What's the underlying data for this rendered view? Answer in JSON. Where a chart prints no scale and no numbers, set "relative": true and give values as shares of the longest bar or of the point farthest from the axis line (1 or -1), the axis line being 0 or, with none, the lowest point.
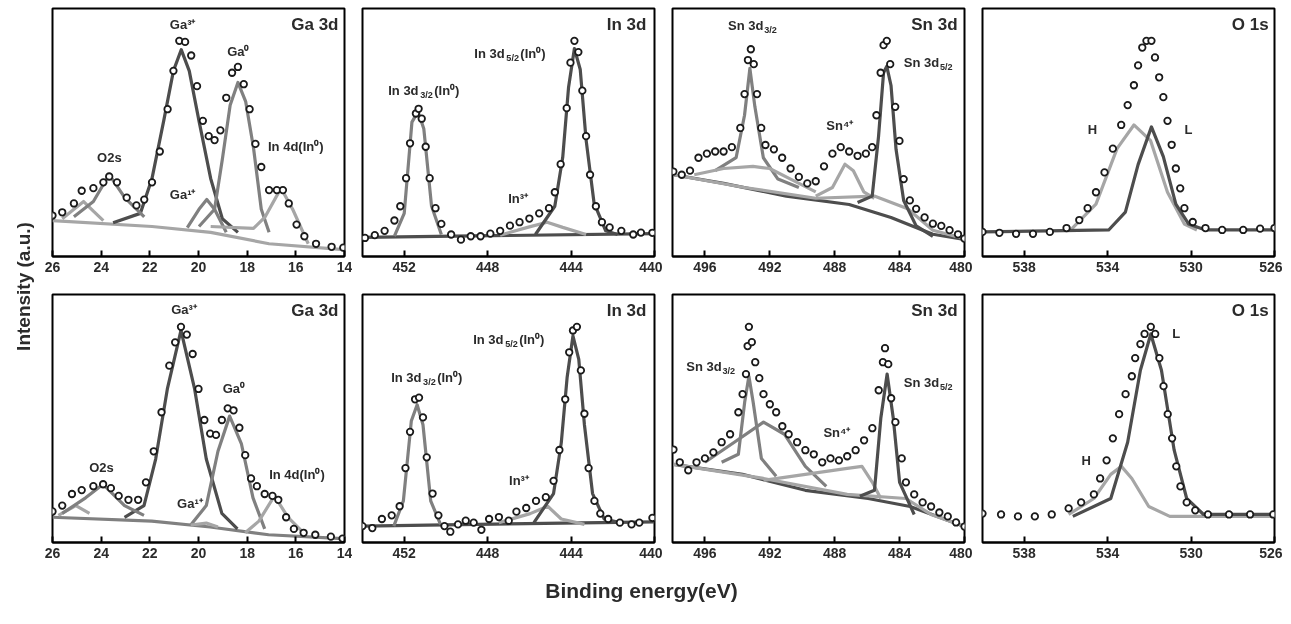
{
  "chart_data": [
    {
      "type": "scatter",
      "title": "Ga 3d",
      "ylabel": "Intensity (a.u.)",
      "relative": true,
      "grid": false,
      "xlim": [
        26,
        14
      ],
      "xticks": [
        26,
        24,
        22,
        20,
        18,
        16,
        14
      ],
      "annotations": [
        "Ga³⁺",
        "Ga⁰",
        "O2s",
        "Ga¹⁺",
        "In 4d(In⁰)"
      ],
      "series": [
        {
          "type": "line",
          "color": "#a6a6a6",
          "x": [
            26,
            21.91,
            19.5,
            17.1,
            14.05
          ],
          "values": [
            0.166,
            0.139,
            0.112,
            0.059,
            0.032
          ]
        },
        {
          "type": "line",
          "color": "#4d4d4d",
          "x": [
            23.51,
            22.39,
            21.91,
            21.43,
            21.03,
            20.71,
            20.38,
            19.98,
            19.5,
            19.02,
            18.38
          ],
          "values": [
            0.157,
            0.2,
            0.362,
            0.629,
            0.861,
            0.959,
            0.861,
            0.629,
            0.362,
            0.175,
            0.112
          ]
        },
        {
          "type": "line",
          "color": "#808080",
          "x": [
            19.98,
            19.34,
            19.02,
            18.7,
            18.38,
            18.06,
            17.74,
            17.42,
            17.1
          ],
          "values": [
            0.139,
            0.219,
            0.451,
            0.701,
            0.807,
            0.718,
            0.504,
            0.219,
            0.112
          ]
        },
        {
          "type": "line",
          "color": "#808080",
          "x": [
            20.46,
            19.98,
            19.66,
            19.34,
            18.86
          ],
          "values": [
            0.134,
            0.219,
            0.264,
            0.219,
            0.112
          ]
        },
        {
          "type": "line",
          "color": "#a6a6a6",
          "x": [
            19.5,
            17.74,
            17.26,
            16.61,
            16.13,
            15.49
          ],
          "values": [
            0.139,
            0.13,
            0.184,
            0.317,
            0.219,
            0.059
          ]
        },
        {
          "type": "line",
          "color": "#a6a6a6",
          "x": [
            25.6,
            25.12,
            24.72,
            24.32,
            23.91
          ],
          "values": [
            0.175,
            0.219,
            0.255,
            0.21,
            0.166
          ]
        },
        {
          "type": "line",
          "color": "#808080",
          "x": [
            25.12,
            24.32,
            23.67,
            23.03,
            22.23
          ],
          "values": [
            0.184,
            0.255,
            0.38,
            0.273,
            0.184
          ]
        },
        {
          "color": "#1a1a1a",
          "marker": "circle",
          "x": [
            26.0,
            25.6,
            25.12,
            24.8,
            24.32,
            23.91,
            23.67,
            23.35,
            22.95,
            22.55,
            22.23,
            21.91,
            21.59,
            21.27,
            21.03,
            20.79,
            20.55,
            20.3,
            20.06,
            19.82,
            19.58,
            19.34,
            19.1,
            18.86,
            18.62,
            18.38,
            18.14,
            17.9,
            17.66,
            17.42,
            17.1,
            16.78,
            16.53,
            16.29,
            15.97,
            15.65,
            15.17,
            14.53,
            14.05
          ],
          "values": [
            0.19,
            0.205,
            0.246,
            0.305,
            0.317,
            0.344,
            0.371,
            0.344,
            0.273,
            0.237,
            0.264,
            0.344,
            0.487,
            0.683,
            0.861,
            1.0,
            0.995,
            0.932,
            0.79,
            0.629,
            0.558,
            0.54,
            0.585,
            0.736,
            0.852,
            0.879,
            0.799,
            0.683,
            0.522,
            0.415,
            0.308,
            0.308,
            0.308,
            0.246,
            0.148,
            0.094,
            0.059,
            0.045,
            0.041
          ]
        }
      ]
    },
    {
      "type": "scatter",
      "title": "In 3d",
      "relative": true,
      "grid": false,
      "xlim": [
        454,
        440
      ],
      "xticks": [
        452,
        448,
        444,
        440
      ],
      "annotations": [
        "In 3d$_{3/2}$(In⁰)",
        "In 3d$_{5/2}$(In⁰)",
        "In³⁺"
      ],
      "series": [
        {
          "type": "line",
          "color": "#4d4d4d",
          "x": [
            454,
            440
          ],
          "values": [
            0.089,
            0.106
          ]
        },
        {
          "type": "line",
          "color": "#808080",
          "x": [
            452.47,
            452,
            451.63,
            451.34,
            451.06,
            450.69,
            450.22
          ],
          "values": [
            0.094,
            0.2,
            0.623,
            0.672,
            0.592,
            0.234,
            0.102
          ]
        },
        {
          "type": "line",
          "color": "#a6a6a6",
          "x": [
            447.4,
            446.09,
            445.15,
            444.4,
            443.28
          ],
          "values": [
            0.099,
            0.135,
            0.159,
            0.135,
            0.102
          ]
        },
        {
          "type": "line",
          "color": "#4d4d4d",
          "x": [
            445.71,
            444.78,
            444.4,
            444.12,
            443.84,
            443.56,
            443.28,
            442.9,
            442.34,
            441.77
          ],
          "values": [
            0.102,
            0.233,
            0.46,
            0.785,
            0.964,
            0.867,
            0.541,
            0.249,
            0.119,
            0.102
          ]
        },
        {
          "color": "#1a1a1a",
          "marker": "circle",
          "x": [
            453.88,
            453.41,
            452.94,
            452.47,
            452.19,
            451.91,
            451.72,
            451.44,
            451.31,
            451.16,
            450.97,
            450.78,
            450.5,
            450.22,
            449.75,
            449.28,
            448.81,
            448.34,
            447.87,
            447.4,
            446.93,
            446.47,
            446.0,
            445.53,
            445.06,
            444.78,
            444.5,
            444.21,
            444.03,
            443.84,
            443.65,
            443.46,
            443.28,
            443.09,
            442.81,
            442.52,
            442.15,
            441.59,
            441.02,
            440.65,
            440.1
          ],
          "values": [
            0.086,
            0.099,
            0.119,
            0.167,
            0.233,
            0.363,
            0.525,
            0.663,
            0.685,
            0.639,
            0.509,
            0.363,
            0.224,
            0.151,
            0.102,
            0.078,
            0.094,
            0.094,
            0.106,
            0.119,
            0.143,
            0.159,
            0.176,
            0.2,
            0.224,
            0.298,
            0.428,
            0.688,
            0.899,
            1.0,
            0.948,
            0.769,
            0.558,
            0.379,
            0.233,
            0.159,
            0.135,
            0.119,
            0.102,
            0.111,
            0.11
          ]
        }
      ]
    },
    {
      "type": "scatter",
      "title": "Sn 3d",
      "relative": true,
      "grid": false,
      "xlim": [
        498,
        480
      ],
      "xticks": [
        496,
        492,
        488,
        484,
        480
      ],
      "annotations": [
        "Sn 3d$_{3/2}$",
        "Sn 3d$_{5/2}$",
        "Sn⁴⁺"
      ],
      "series": [
        {
          "type": "line",
          "color": "#4d4d4d",
          "x": [
            497.95,
            494.85,
            490.98,
            487.11,
            484.53,
            481.95,
            480.01
          ],
          "values": [
            0.379,
            0.339,
            0.28,
            0.241,
            0.181,
            0.103,
            0.079
          ]
        },
        {
          "type": "line",
          "color": "#a6a6a6",
          "x": [
            497.95,
            493.56,
            489.17,
            485.56,
            483.5,
            481.95,
            480.01
          ],
          "values": [
            0.379,
            0.32,
            0.27,
            0.28,
            0.221,
            0.122,
            0.083
          ]
        },
        {
          "type": "line",
          "color": "#808080",
          "x": [
            495.37,
            494.08,
            493.56,
            493.23,
            492.92,
            492.4,
            491.5,
            490.21
          ],
          "values": [
            0.398,
            0.458,
            0.655,
            0.872,
            0.694,
            0.458,
            0.359,
            0.32
          ]
        },
        {
          "type": "line",
          "color": "#a6a6a6",
          "x": [
            496.66,
            494.85,
            493.04,
            492.01,
            490.72,
            489.17
          ],
          "values": [
            0.379,
            0.408,
            0.418,
            0.408,
            0.359,
            0.3
          ]
        },
        {
          "type": "line",
          "color": "#a6a6a6",
          "x": [
            489.17,
            488.14,
            487.37,
            486.85,
            486.21,
            485.56
          ],
          "values": [
            0.28,
            0.32,
            0.428,
            0.398,
            0.3,
            0.27
          ]
        },
        {
          "type": "line",
          "color": "#4d4d4d",
          "x": [
            486.59,
            485.69,
            485.3,
            484.99,
            484.79,
            484.53,
            484.22,
            483.75,
            482.98,
            481.95
          ],
          "values": [
            0.25,
            0.28,
            0.556,
            0.852,
            0.882,
            0.793,
            0.497,
            0.26,
            0.142,
            0.093
          ]
        },
        {
          "color": "#1a1a1a",
          "marker": "circle",
          "x": [
            497.95,
            497.43,
            496.92,
            496.4,
            495.88,
            495.37,
            494.85,
            494.34,
            493.82,
            493.56,
            493.35,
            493.17,
            492.99,
            492.79,
            492.53,
            492.27,
            491.75,
            491.24,
            490.72,
            490.21,
            489.69,
            489.17,
            488.66,
            488.14,
            487.63,
            487.11,
            486.59,
            486.08,
            485.69,
            485.43,
            485.17,
            484.99,
            484.79,
            484.58,
            484.27,
            484.01,
            483.75,
            483.37,
            482.98,
            482.46,
            481.95,
            481.43,
            480.92,
            480.4,
            480.01
          ],
          "values": [
            0.394,
            0.379,
            0.398,
            0.458,
            0.477,
            0.487,
            0.487,
            0.507,
            0.596,
            0.753,
            0.911,
            0.961,
            0.892,
            0.753,
            0.596,
            0.517,
            0.497,
            0.458,
            0.408,
            0.369,
            0.339,
            0.349,
            0.418,
            0.477,
            0.507,
            0.487,
            0.467,
            0.477,
            0.507,
            0.655,
            0.852,
            0.98,
            1.0,
            0.892,
            0.694,
            0.536,
            0.359,
            0.26,
            0.221,
            0.181,
            0.152,
            0.142,
            0.122,
            0.103,
            0.083
          ]
        }
      ]
    },
    {
      "type": "scatter",
      "title": "O 1s",
      "relative": true,
      "grid": false,
      "xlim": [
        540,
        526
      ],
      "xticks": [
        538,
        534,
        530,
        526
      ],
      "annotations": [
        "H",
        "L"
      ],
      "series": [
        {
          "type": "line",
          "color": "#a6a6a6",
          "x": [
            535.77,
            534.56,
            533.55,
            532.74,
            531.94,
            531.13,
            530.32,
            529.72
          ],
          "values": [
            0.123,
            0.243,
            0.5,
            0.61,
            0.537,
            0.298,
            0.151,
            0.123
          ]
        },
        {
          "type": "line",
          "color": "#4d4d4d",
          "x": [
            540,
            533.95,
            533.15,
            532.54,
            531.9,
            531.33,
            530.73,
            530.12,
            529.31,
            526
          ],
          "values": [
            0.114,
            0.123,
            0.206,
            0.426,
            0.601,
            0.463,
            0.243,
            0.151,
            0.123,
            0.123
          ]
        },
        {
          "color": "#1a1a1a",
          "marker": "circle",
          "x": [
            540,
            539.19,
            538.39,
            537.58,
            536.77,
            535.97,
            535.36,
            534.96,
            534.56,
            534.15,
            533.75,
            533.35,
            533.04,
            532.74,
            532.54,
            532.34,
            532.14,
            531.9,
            531.73,
            531.53,
            531.33,
            531.13,
            530.93,
            530.73,
            530.52,
            530.32,
            529.92,
            529.31,
            528.51,
            527.5,
            526.69,
            526
          ],
          "values": [
            0.114,
            0.11,
            0.105,
            0.105,
            0.114,
            0.132,
            0.169,
            0.224,
            0.298,
            0.39,
            0.5,
            0.61,
            0.702,
            0.794,
            0.886,
            0.969,
            1.0,
            1.0,
            0.923,
            0.831,
            0.739,
            0.629,
            0.518,
            0.408,
            0.316,
            0.224,
            0.16,
            0.132,
            0.123,
            0.123,
            0.129,
            0.132
          ]
        }
      ]
    },
    {
      "type": "scatter",
      "title": "Ga 3d",
      "relative": true,
      "grid": false,
      "xlim": [
        26,
        14
      ],
      "xticks": [
        26,
        24,
        22,
        20,
        18,
        16,
        14
      ],
      "annotations": [
        "Ga³⁺",
        "Ga⁰",
        "O2s",
        "Ga¹⁺",
        "In 4d(In⁰)"
      ],
      "series": [
        {
          "type": "line",
          "color": "#808080",
          "x": [
            26,
            21.92,
            19.52,
            17.12,
            14.08
          ],
          "values": [
            0.117,
            0.099,
            0.072,
            0.036,
            0.018
          ]
        },
        {
          "type": "line",
          "color": "#4d4d4d",
          "x": [
            23.04,
            22.24,
            21.76,
            21.28,
            20.72,
            20.16,
            19.68,
            19.04,
            18.4
          ],
          "values": [
            0.117,
            0.171,
            0.387,
            0.712,
            0.984,
            0.712,
            0.387,
            0.135,
            0.063
          ]
        },
        {
          "type": "line",
          "color": "#808080",
          "x": [
            20.32,
            19.68,
            19.2,
            18.72,
            18.24,
            17.76,
            17.28
          ],
          "values": [
            0.081,
            0.171,
            0.423,
            0.586,
            0.459,
            0.207,
            0.063
          ]
        },
        {
          "type": "line",
          "color": "#a6a6a6",
          "x": [
            20.32,
            19.68,
            19.2
          ],
          "values": [
            0.081,
            0.09,
            0.072
          ]
        },
        {
          "type": "line",
          "color": "#a6a6a6",
          "x": [
            18.08,
            17.52,
            16.88,
            16.32,
            15.68
          ],
          "values": [
            0.045,
            0.099,
            0.216,
            0.117,
            0.045
          ]
        },
        {
          "type": "line",
          "color": "#a6a6a6",
          "x": [
            25.76,
            25.04,
            24.48
          ],
          "values": [
            0.126,
            0.171,
            0.135
          ]
        },
        {
          "type": "line",
          "color": "#808080",
          "x": [
            25.6,
            24.64,
            23.92,
            23.04,
            22.24
          ],
          "values": [
            0.135,
            0.207,
            0.27,
            0.171,
            0.126
          ]
        },
        {
          "color": "#1a1a1a",
          "marker": "circle",
          "x": [
            26,
            25.6,
            25.2,
            24.8,
            24.32,
            23.92,
            23.6,
            23.28,
            22.88,
            22.48,
            22.16,
            21.84,
            21.52,
            21.2,
            20.96,
            20.72,
            20.48,
            20.24,
            20,
            19.76,
            19.52,
            19.28,
            19.04,
            18.8,
            18.56,
            18.32,
            18.08,
            17.84,
            17.6,
            17.28,
            16.96,
            16.72,
            16.4,
            16.08,
            15.68,
            15.2,
            14.56,
            14.08
          ],
          "values": [
            0.144,
            0.171,
            0.225,
            0.243,
            0.261,
            0.27,
            0.252,
            0.216,
            0.198,
            0.198,
            0.279,
            0.423,
            0.604,
            0.82,
            0.928,
            1.0,
            0.964,
            0.874,
            0.712,
            0.568,
            0.505,
            0.499,
            0.568,
            0.622,
            0.613,
            0.532,
            0.405,
            0.297,
            0.261,
            0.225,
            0.216,
            0.198,
            0.117,
            0.063,
            0.045,
            0.036,
            0.027,
            0.018
          ]
        }
      ]
    },
    {
      "type": "scatter",
      "title": "In 3d",
      "xlabel": "Binding energy(eV)",
      "relative": true,
      "grid": false,
      "xlim": [
        454,
        440
      ],
      "xticks": [
        452,
        448,
        444,
        440
      ],
      "annotations": [
        "In 3d$_{3/2}$(In⁰)",
        "In 3d$_{5/2}$(In⁰)",
        "In³⁺"
      ],
      "series": [
        {
          "type": "line",
          "color": "#4d4d4d",
          "x": [
            454,
            440
          ],
          "values": [
            0.076,
            0.096
          ]
        },
        {
          "type": "line",
          "color": "#808080",
          "x": [
            452.5,
            452.04,
            451.66,
            451.38,
            451.1,
            450.73,
            450.26
          ],
          "values": [
            0.076,
            0.193,
            0.563,
            0.639,
            0.546,
            0.193,
            0.084
          ]
        },
        {
          "type": "line",
          "color": "#a6a6a6",
          "x": [
            447.46,
            445.96,
            445.12,
            444.47,
            443.36
          ],
          "values": [
            0.092,
            0.134,
            0.168,
            0.109,
            0.084
          ]
        },
        {
          "type": "line",
          "color": "#4d4d4d",
          "x": [
            445.78,
            444.84,
            444.47,
            444.19,
            443.91,
            443.63,
            443.36,
            442.97,
            442.41,
            441.66
          ],
          "values": [
            0.092,
            0.227,
            0.462,
            0.765,
            0.958,
            0.849,
            0.546,
            0.227,
            0.109,
            0.092
          ]
        },
        {
          "color": "#1a1a1a",
          "marker": "circle",
          "x": [
            454,
            453.53,
            453.07,
            452.6,
            452.22,
            451.94,
            451.72,
            451.48,
            451.29,
            451.1,
            450.92,
            450.64,
            450.36,
            450.07,
            449.79,
            449.42,
            449.05,
            448.67,
            448.3,
            447.93,
            447.46,
            446.99,
            446.62,
            446.15,
            445.68,
            445.21,
            444.84,
            444.56,
            444.28,
            444.09,
            443.91,
            443.72,
            443.53,
            443.36,
            443.16,
            442.88,
            442.6,
            442.22,
            441.66,
            441.1,
            440.73,
            440.1
          ],
          "values": [
            0.076,
            0.067,
            0.109,
            0.126,
            0.168,
            0.345,
            0.513,
            0.664,
            0.672,
            0.58,
            0.395,
            0.227,
            0.126,
            0.076,
            0.05,
            0.084,
            0.101,
            0.092,
            0.059,
            0.109,
            0.118,
            0.101,
            0.143,
            0.16,
            0.193,
            0.21,
            0.286,
            0.429,
            0.664,
            0.882,
            0.983,
            1.0,
            0.798,
            0.597,
            0.345,
            0.193,
            0.134,
            0.109,
            0.092,
            0.084,
            0.092,
            0.114
          ]
        }
      ]
    },
    {
      "type": "scatter",
      "title": "Sn 3d",
      "relative": true,
      "grid": false,
      "xlim": [
        498,
        480
      ],
      "xticks": [
        496,
        492,
        488,
        484,
        480
      ],
      "annotations": [
        "Sn 3d$_{3/2}$",
        "Sn 3d$_{5/2}$",
        "Sn⁴⁺"
      ],
      "series": [
        {
          "type": "line",
          "color": "#4d4d4d",
          "x": [
            497.94,
            493.68,
            489.81,
            485.94,
            483.35,
            480
          ],
          "values": [
            0.362,
            0.316,
            0.242,
            0.204,
            0.167,
            0.074
          ]
        },
        {
          "type": "line",
          "color": "#a6a6a6",
          "x": [
            497.94,
            492.39,
            487.23,
            483.61,
            482.06,
            480
          ],
          "values": [
            0.362,
            0.297,
            0.223,
            0.204,
            0.13,
            0.074
          ]
        },
        {
          "type": "line",
          "color": "#808080",
          "x": [
            494.97,
            493.94,
            493.55,
            493.29,
            493.03,
            492.52,
            491.61
          ],
          "values": [
            0.372,
            0.409,
            0.651,
            0.771,
            0.651,
            0.39,
            0.307
          ]
        },
        {
          "type": "line",
          "color": "#808080",
          "x": [
            496,
            494.19,
            492.39,
            491.1,
            489.81,
            488.52
          ],
          "values": [
            0.372,
            0.465,
            0.558,
            0.502,
            0.353,
            0.26
          ]
        },
        {
          "type": "line",
          "color": "#a6a6a6",
          "x": [
            492.39,
            489.81,
            487.23,
            486.32,
            485.68,
            485.16
          ],
          "values": [
            0.288,
            0.316,
            0.344,
            0.353,
            0.279,
            0.204
          ]
        },
        {
          "type": "line",
          "color": "#4d4d4d",
          "x": [
            486.45,
            485.55,
            485.16,
            484.77,
            484.39,
            484,
            483.1
          ],
          "values": [
            0.214,
            0.242,
            0.576,
            0.781,
            0.576,
            0.279,
            0.13
          ]
        },
        {
          "color": "#1a1a1a",
          "marker": "circle",
          "x": [
            497.94,
            497.55,
            497.03,
            496.52,
            496,
            495.48,
            494.97,
            494.45,
            493.94,
            493.68,
            493.47,
            493.37,
            493.29,
            493.11,
            492.9,
            492.65,
            492.39,
            492,
            491.61,
            491.23,
            490.84,
            490.32,
            489.81,
            489.29,
            488.77,
            488.26,
            487.74,
            487.23,
            486.71,
            486.19,
            485.68,
            485.29,
            485.03,
            484.9,
            484.7,
            484.52,
            484.26,
            483.87,
            483.61,
            483.1,
            482.58,
            482.06,
            481.55,
            481.03,
            480.52,
            480
          ],
          "values": [
            0.431,
            0.372,
            0.335,
            0.372,
            0.39,
            0.418,
            0.465,
            0.502,
            0.604,
            0.688,
            0.781,
            0.911,
            1.0,
            0.929,
            0.836,
            0.762,
            0.688,
            0.641,
            0.604,
            0.539,
            0.502,
            0.465,
            0.428,
            0.409,
            0.372,
            0.39,
            0.381,
            0.4,
            0.428,
            0.474,
            0.53,
            0.706,
            0.836,
            0.901,
            0.827,
            0.669,
            0.558,
            0.39,
            0.279,
            0.223,
            0.186,
            0.167,
            0.139,
            0.121,
            0.093,
            0.074
          ]
        }
      ]
    },
    {
      "type": "scatter",
      "title": "O 1s",
      "relative": true,
      "grid": false,
      "xlim": [
        540,
        526
      ],
      "xticks": [
        538,
        534,
        530,
        526
      ],
      "annotations": [
        "H",
        "L"
      ],
      "series": [
        {
          "type": "line",
          "color": "#a6a6a6",
          "x": [
            535.87,
            534.66,
            533.85,
            533.34,
            532.84,
            532.03,
            531.02,
            526.06
          ],
          "values": [
            0.13,
            0.204,
            0.316,
            0.353,
            0.297,
            0.167,
            0.121,
            0.121
          ]
        },
        {
          "type": "line",
          "color": "#4d4d4d",
          "x": [
            535.67,
            533.85,
            533.04,
            532.43,
            531.93,
            531.42,
            530.81,
            530.21,
            529.4,
            526.06
          ],
          "values": [
            0.121,
            0.204,
            0.465,
            0.799,
            0.967,
            0.799,
            0.428,
            0.204,
            0.13,
            0.13
          ]
        },
        {
          "color": "#1a1a1a",
          "marker": "circle",
          "x": [
            540,
            539.11,
            538.3,
            537.49,
            536.68,
            535.87,
            535.27,
            534.66,
            534.36,
            534.05,
            533.75,
            533.45,
            533.14,
            532.84,
            532.68,
            532.43,
            532.23,
            531.93,
            531.72,
            531.52,
            531.32,
            531.12,
            530.91,
            530.71,
            530.51,
            530.21,
            529.8,
            529.19,
            528.18,
            527.17,
            526.06
          ],
          "values": [
            0.134,
            0.13,
            0.121,
            0.121,
            0.13,
            0.158,
            0.186,
            0.223,
            0.297,
            0.381,
            0.483,
            0.595,
            0.688,
            0.771,
            0.855,
            0.92,
            0.967,
            1.0,
            0.967,
            0.855,
            0.725,
            0.595,
            0.483,
            0.353,
            0.26,
            0.186,
            0.149,
            0.13,
            0.13,
            0.13,
            0.13
          ]
        }
      ]
    }
  ]
}
